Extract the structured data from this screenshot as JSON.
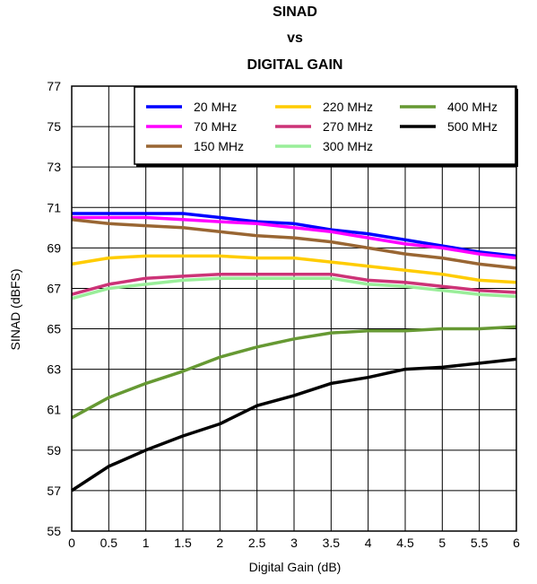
{
  "chart_data": {
    "type": "line",
    "title_lines": [
      "SINAD",
      "vs",
      "DIGITAL GAIN"
    ],
    "xlabel": "Digital Gain (dB)",
    "ylabel": "SINAD (dBFS)",
    "xlim": [
      0,
      6
    ],
    "ylim": [
      55,
      77
    ],
    "xticks": [
      "0",
      "0.5",
      "1",
      "1.5",
      "2",
      "2.5",
      "3",
      "3.5",
      "4",
      "4.5",
      "5",
      "5.5",
      "6"
    ],
    "yticks": [
      "55",
      "57",
      "59",
      "61",
      "63",
      "65",
      "67",
      "69",
      "71",
      "73",
      "75",
      "77"
    ],
    "grid": true,
    "legend_position": "top-right",
    "x": [
      0,
      0.5,
      1,
      1.5,
      2,
      2.5,
      3,
      3.5,
      4,
      4.5,
      5,
      5.5,
      6
    ],
    "series": [
      {
        "name": "20 MHz",
        "color": "#0000ff",
        "values": [
          70.7,
          70.7,
          70.7,
          70.7,
          70.5,
          70.3,
          70.2,
          69.9,
          69.7,
          69.4,
          69.1,
          68.8,
          68.6
        ]
      },
      {
        "name": "70 MHz",
        "color": "#ff00ff",
        "values": [
          70.5,
          70.5,
          70.5,
          70.4,
          70.3,
          70.2,
          70.0,
          69.8,
          69.5,
          69.2,
          69.0,
          68.7,
          68.5
        ]
      },
      {
        "name": "150 MHz",
        "color": "#996633",
        "values": [
          70.4,
          70.2,
          70.1,
          70.0,
          69.8,
          69.6,
          69.5,
          69.3,
          69.0,
          68.7,
          68.5,
          68.2,
          68.0
        ]
      },
      {
        "name": "220 MHz",
        "color": "#ffcc00",
        "values": [
          68.2,
          68.5,
          68.6,
          68.6,
          68.6,
          68.5,
          68.5,
          68.3,
          68.1,
          67.9,
          67.7,
          67.4,
          67.3
        ]
      },
      {
        "name": "270 MHz",
        "color": "#cc3377",
        "values": [
          66.7,
          67.2,
          67.5,
          67.6,
          67.7,
          67.7,
          67.7,
          67.7,
          67.4,
          67.3,
          67.1,
          66.9,
          66.8
        ]
      },
      {
        "name": "300 MHz",
        "color": "#99ee99",
        "values": [
          66.5,
          67.0,
          67.2,
          67.4,
          67.5,
          67.5,
          67.5,
          67.5,
          67.2,
          67.1,
          66.9,
          66.7,
          66.6
        ]
      },
      {
        "name": "400 MHz",
        "color": "#669933",
        "values": [
          60.6,
          61.6,
          62.3,
          62.9,
          63.6,
          64.1,
          64.5,
          64.8,
          64.9,
          64.9,
          65.0,
          65.0,
          65.1
        ]
      },
      {
        "name": "500 MHz",
        "color": "#000000",
        "values": [
          57.0,
          58.2,
          59.0,
          59.7,
          60.3,
          61.2,
          61.7,
          62.3,
          62.6,
          63.0,
          63.1,
          63.3,
          63.5
        ]
      }
    ]
  }
}
